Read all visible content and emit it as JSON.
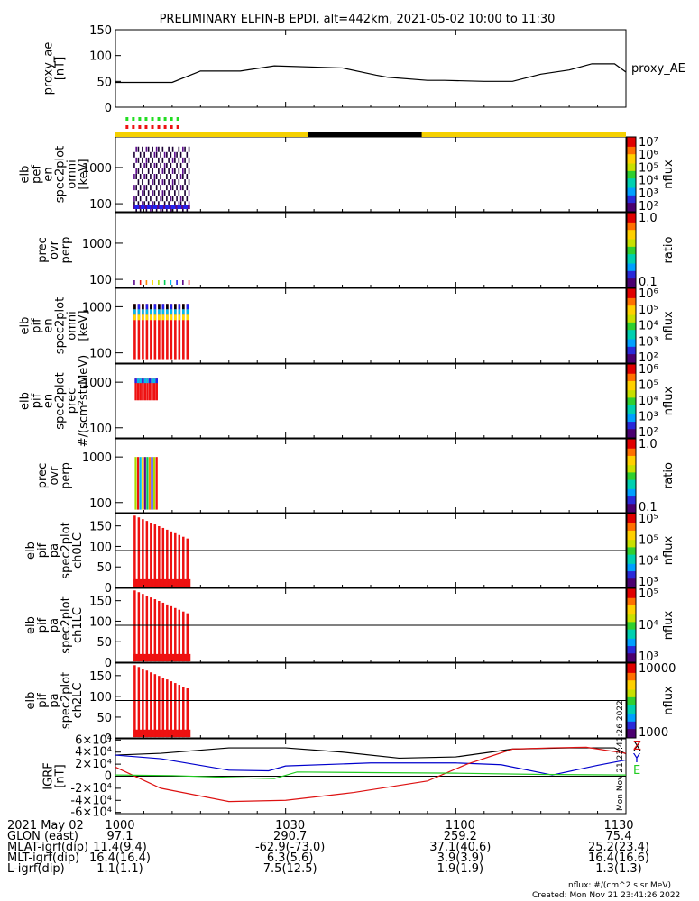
{
  "title": "PRELIMINARY ELFIN-B EPDI, alt=442km, 2021-05-02 10:00 to 11:30",
  "colors": {
    "yellow_bar": "#f5d000",
    "black_bar": "#000000",
    "fov_green": "#22dd22",
    "fov_red": "#ee1111",
    "axis": "#000000",
    "igrf_x": "#000000",
    "igrf_y": "#0000cc",
    "igrf_z": "#dd1111",
    "igrf_e": "#22cc22"
  },
  "chart_data": [
    {
      "type": "line",
      "id": "proxy_ae",
      "ylabel": [
        "proxy_ae",
        "[nT]"
      ],
      "ylim": [
        0,
        150
      ],
      "yticks": [
        "0",
        "50",
        "100",
        "150"
      ],
      "legend": "proxy_AE",
      "x_minutes": [
        0,
        8,
        10,
        15,
        18,
        22,
        28,
        40,
        46,
        48,
        55,
        58,
        65,
        70,
        75,
        80,
        84,
        88,
        90
      ],
      "y": [
        48,
        48,
        48,
        70,
        70,
        70,
        80,
        76,
        62,
        58,
        52,
        52,
        50,
        50,
        64,
        72,
        84,
        84,
        68
      ]
    },
    {
      "type": "heatmap",
      "id": "pef_en_spec2plot_omni",
      "ylabel": [
        "elb",
        "pef",
        "en",
        "spec2plot",
        "omni",
        "[keV]"
      ],
      "ylog": true,
      "ylim": [
        60,
        7000
      ],
      "yticks": [
        "100",
        "1000"
      ],
      "zlabel": "nflux",
      "zticks": [
        "10²",
        "10³",
        "10⁴",
        "10⁵",
        "10⁶",
        "10⁷"
      ]
    },
    {
      "type": "heatmap",
      "id": "prec_ovr_perp_e",
      "ylabel": [
        "prec",
        "ovr",
        "perp"
      ],
      "ylog": true,
      "ylim": [
        60,
        7000
      ],
      "yticks": [
        "100",
        "1000"
      ],
      "zlabel": "ratio",
      "zticks": [
        "0.1",
        "1.0"
      ]
    },
    {
      "type": "heatmap",
      "id": "pif_en_spec2plot_omni",
      "ylabel": [
        "elb",
        "pif",
        "en",
        "spec2plot",
        "omni",
        "[keV]"
      ],
      "ylog": true,
      "ylim": [
        60,
        2500
      ],
      "yticks": [
        "100",
        "1000"
      ],
      "zlabel": "nflux",
      "zticks": [
        "10²",
        "10³",
        "10⁴",
        "10⁵",
        "10⁶"
      ]
    },
    {
      "type": "heatmap",
      "id": "pif_en_spec2plot_prec",
      "ylabel": [
        "elb",
        "pif",
        "en",
        "spec2plot",
        "prec",
        "#/(scm²strMeV)"
      ],
      "ylog": true,
      "ylim": [
        60,
        2500
      ],
      "yticks": [
        "100",
        "1000"
      ],
      "zlabel": "nflux",
      "zticks": [
        "10²",
        "10³",
        "10⁴",
        "10⁵",
        "10⁶"
      ]
    },
    {
      "type": "heatmap",
      "id": "prec_ovr_perp_i",
      "ylabel": [
        "prec",
        "ovr",
        "perp"
      ],
      "ylog": true,
      "ylim": [
        60,
        2500
      ],
      "yticks": [
        "100",
        "1000"
      ],
      "zlabel": "ratio",
      "zticks": [
        "0.1",
        "1.0"
      ]
    },
    {
      "type": "heatmap",
      "id": "pa_spec2plot_ch0LC",
      "ylabel": [
        "elb",
        "pif",
        "pa",
        "spec2plot",
        "ch0LC"
      ],
      "ylim": [
        0,
        180
      ],
      "yticks": [
        "0",
        "50",
        "100",
        "150"
      ],
      "reference_line": 90,
      "zlabel": "nflux",
      "zticks": [
        "10³",
        "10⁴",
        "10⁵",
        "10⁵"
      ]
    },
    {
      "type": "heatmap",
      "id": "pa_spec2plot_ch1LC",
      "ylabel": [
        "elb",
        "pif",
        "pa",
        "spec2plot",
        "ch1LC"
      ],
      "ylim": [
        0,
        180
      ],
      "yticks": [
        "0",
        "50",
        "100",
        "150"
      ],
      "reference_line": 90,
      "zlabel": "nflux",
      "zticks": [
        "10³",
        "10⁴",
        "10⁵"
      ]
    },
    {
      "type": "heatmap",
      "id": "pa_spec2plot_ch2LC",
      "ylabel": [
        "elb",
        "pif",
        "pa",
        "spec2plot",
        "ch2LC"
      ],
      "ylim": [
        0,
        180
      ],
      "yticks": [
        "0",
        "50",
        "100",
        "150"
      ],
      "reference_line": 90,
      "zlabel": "nflux",
      "zticks": [
        "1000",
        "10000"
      ]
    },
    {
      "type": "line",
      "id": "igrf",
      "ylabel": [
        "IGRF",
        "[nT]"
      ],
      "ylim": [
        -62000,
        62000
      ],
      "yticks": [
        "-6×10⁴",
        "-4×10⁴",
        "-2×10⁴",
        "0",
        "2×10⁴",
        "4×10⁴",
        "6×10⁴"
      ],
      "legend": [
        "X",
        "Y",
        "Z",
        "E"
      ],
      "series": [
        {
          "name": "X",
          "x_minutes": [
            0,
            8,
            20,
            30,
            40,
            50,
            60,
            70,
            80,
            88,
            90
          ],
          "y": [
            35000,
            38000,
            47000,
            47000,
            40000,
            30000,
            32000,
            45000,
            47000,
            47000,
            37000
          ]
        },
        {
          "name": "Y",
          "x_minutes": [
            0,
            8,
            20,
            27,
            30,
            45,
            60,
            68,
            77,
            85,
            90
          ],
          "y": [
            35000,
            29000,
            10000,
            9000,
            17000,
            22000,
            22000,
            19000,
            2000,
            18000,
            27000
          ]
        },
        {
          "name": "Z",
          "x_minutes": [
            0,
            8,
            20,
            30,
            42,
            55,
            62,
            70,
            77,
            83,
            90
          ],
          "y": [
            15000,
            -20000,
            -42000,
            -40000,
            -27000,
            -8000,
            20000,
            45000,
            47000,
            48000,
            38000
          ]
        },
        {
          "name": "E",
          "x_minutes": [
            0,
            10,
            20,
            28,
            32,
            45,
            60,
            75,
            90
          ],
          "y": [
            2000,
            1000,
            -2000,
            -4000,
            7000,
            6000,
            5000,
            3000,
            2000
          ]
        }
      ]
    }
  ],
  "x_axis": {
    "range_minutes": [
      0,
      90
    ],
    "ticks": [
      {
        "minute": 0,
        "label": "1000"
      },
      {
        "minute": 30,
        "label": "1030"
      },
      {
        "minute": 60,
        "label": "1100"
      },
      {
        "minute": 90,
        "label": "1130"
      }
    ]
  },
  "ephemeris_rows": [
    {
      "label": "2021 May 02",
      "values": [
        "1000",
        "1030",
        "1100",
        "1130"
      ]
    },
    {
      "label": "GLON (east)",
      "values": [
        "97.1",
        "290.7",
        "259.2",
        "75.4"
      ]
    },
    {
      "label": "MLAT-igrf(dip)",
      "values": [
        "11.4(9.4)",
        "-62.9(-73.0)",
        "37.1(40.6)",
        "25.2(23.4)"
      ]
    },
    {
      "label": "MLT-igrf(dip)",
      "values": [
        "16.4(16.4)",
        "6.3(5.6)",
        "3.9(3.9)",
        "16.4(16.6)"
      ]
    },
    {
      "label": "L-igrf(dip)",
      "values": [
        "1.1(1.1)",
        "7.5(12.5)",
        "1.9(1.9)",
        "1.3(1.3)"
      ]
    }
  ],
  "footer_notes": {
    "nflux_unit": "nflux: #/(cm^2 s sr MeV)",
    "created": "Created: Mon Nov 21 23:41:26 2022",
    "vertical_stamp": "Mon Nov 21 23:41:26 2022"
  }
}
